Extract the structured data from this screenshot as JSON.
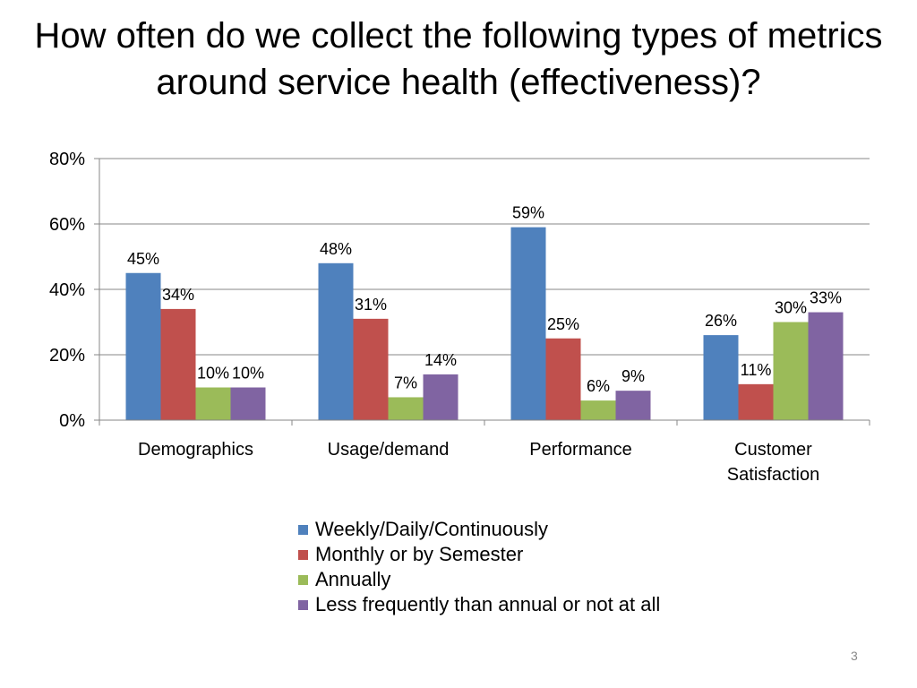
{
  "slide": {
    "title": "How often do we collect the following types of metrics around service health (effectiveness)?",
    "page_number": "3"
  },
  "colors": {
    "series": [
      "#4F81BD",
      "#C0504D",
      "#9BBB59",
      "#8064A2"
    ],
    "grid": "#878787"
  },
  "chart_data": {
    "type": "bar",
    "title": "",
    "xlabel": "",
    "ylabel": "",
    "categories": [
      "Demographics",
      "Usage/demand",
      "Performance",
      "Customer Satisfaction"
    ],
    "series": [
      {
        "name": "Weekly/Daily/Continuously",
        "values": [
          45,
          48,
          59,
          26
        ],
        "labels": [
          "45%",
          "48%",
          "59%",
          "26%"
        ]
      },
      {
        "name": "Monthly or by Semester",
        "values": [
          34,
          31,
          25,
          11
        ],
        "labels": [
          "34%",
          "31%",
          "25%",
          "11%"
        ]
      },
      {
        "name": "Annually",
        "values": [
          10,
          7,
          6,
          30
        ],
        "labels": [
          "10%",
          "7%",
          "6%",
          "30%"
        ]
      },
      {
        "name": "Less frequently than annual or not at all",
        "values": [
          10,
          14,
          9,
          33
        ],
        "labels": [
          "10%",
          "14%",
          "9%",
          "33%"
        ]
      }
    ],
    "ylim": [
      0,
      80
    ],
    "yticks": [
      0,
      20,
      40,
      60,
      80
    ],
    "ytick_labels": [
      "0%",
      "20%",
      "40%",
      "60%",
      "80%"
    ],
    "grid": true,
    "legend_position": "bottom"
  }
}
